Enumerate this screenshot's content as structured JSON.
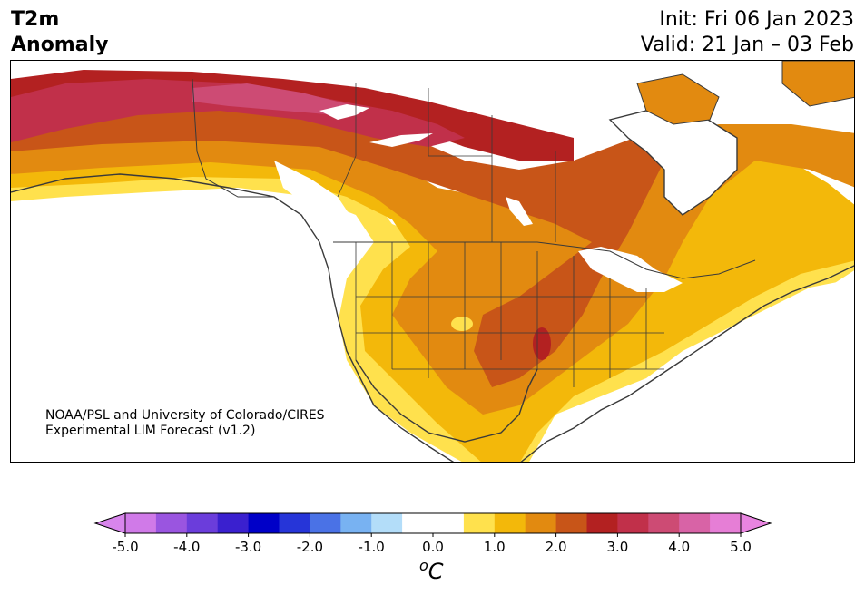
{
  "title": {
    "line1": "T2m",
    "line2": "Anomaly"
  },
  "init": "Init: Fri 06 Jan 2023",
  "valid": "Valid: 21 Jan – 03 Feb",
  "credit": {
    "line1": "NOAA/PSL and University of Colorado/CIRES",
    "line2": "Experimental LIM Forecast (v1.2)"
  },
  "colorbar": {
    "unit_main": "C",
    "unit_sup": "o",
    "ticks": [
      "-5.0",
      "-4.0",
      "-3.0",
      "-2.0",
      "-1.0",
      "0.0",
      "1.0",
      "2.0",
      "3.0",
      "4.0",
      "5.0"
    ],
    "colors": [
      "#d07ae8",
      "#9a55e0",
      "#6b3ddb",
      "#3a20cf",
      "#0000c8",
      "#2635d8",
      "#4a72e6",
      "#78b2f2",
      "#b3ddf9",
      "#ffffff",
      "#ffffff",
      "#ffe14d",
      "#f3b80a",
      "#e28a10",
      "#c85518",
      "#b32121",
      "#c1304a",
      "#cd4b74",
      "#d863a6",
      "#e67ed6"
    ],
    "low_extend": "#d885ec",
    "high_extend": "#e884e0"
  }
}
